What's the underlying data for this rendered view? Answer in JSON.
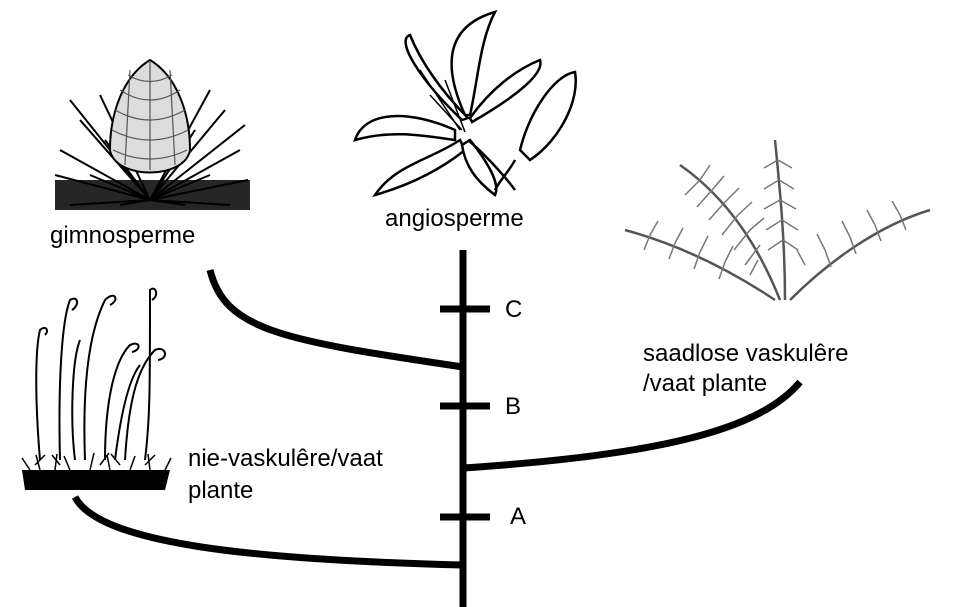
{
  "labels": {
    "gymnosperms": "gimnosperme",
    "angiosperms": "angiosperme",
    "seedless_vascular_line1": "saadlose vaskulêre",
    "seedless_vascular_line2": "/vaat plante",
    "nonvascular_line1": "nie-vaskulêre/vaat",
    "nonvascular_line2": "plante"
  },
  "markers": {
    "a": "A",
    "b": "B",
    "c": "C"
  },
  "illustrations": {
    "conifer": "pine-cone-drawing",
    "lily": "lily-flower-drawing",
    "fern": "fern-fronds-drawing",
    "moss": "moss-sporophytes-drawing"
  },
  "colors": {
    "ink": "#000000",
    "fern": "#555555"
  }
}
